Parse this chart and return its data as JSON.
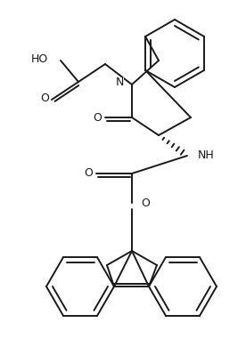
{
  "bg_color": "#ffffff",
  "line_color": "#1a1a1a",
  "line_width": 1.4,
  "figsize": [
    2.76,
    3.9
  ],
  "dpi": 100,
  "xlim": [
    0,
    276
  ],
  "ylim": [
    0,
    390
  ]
}
